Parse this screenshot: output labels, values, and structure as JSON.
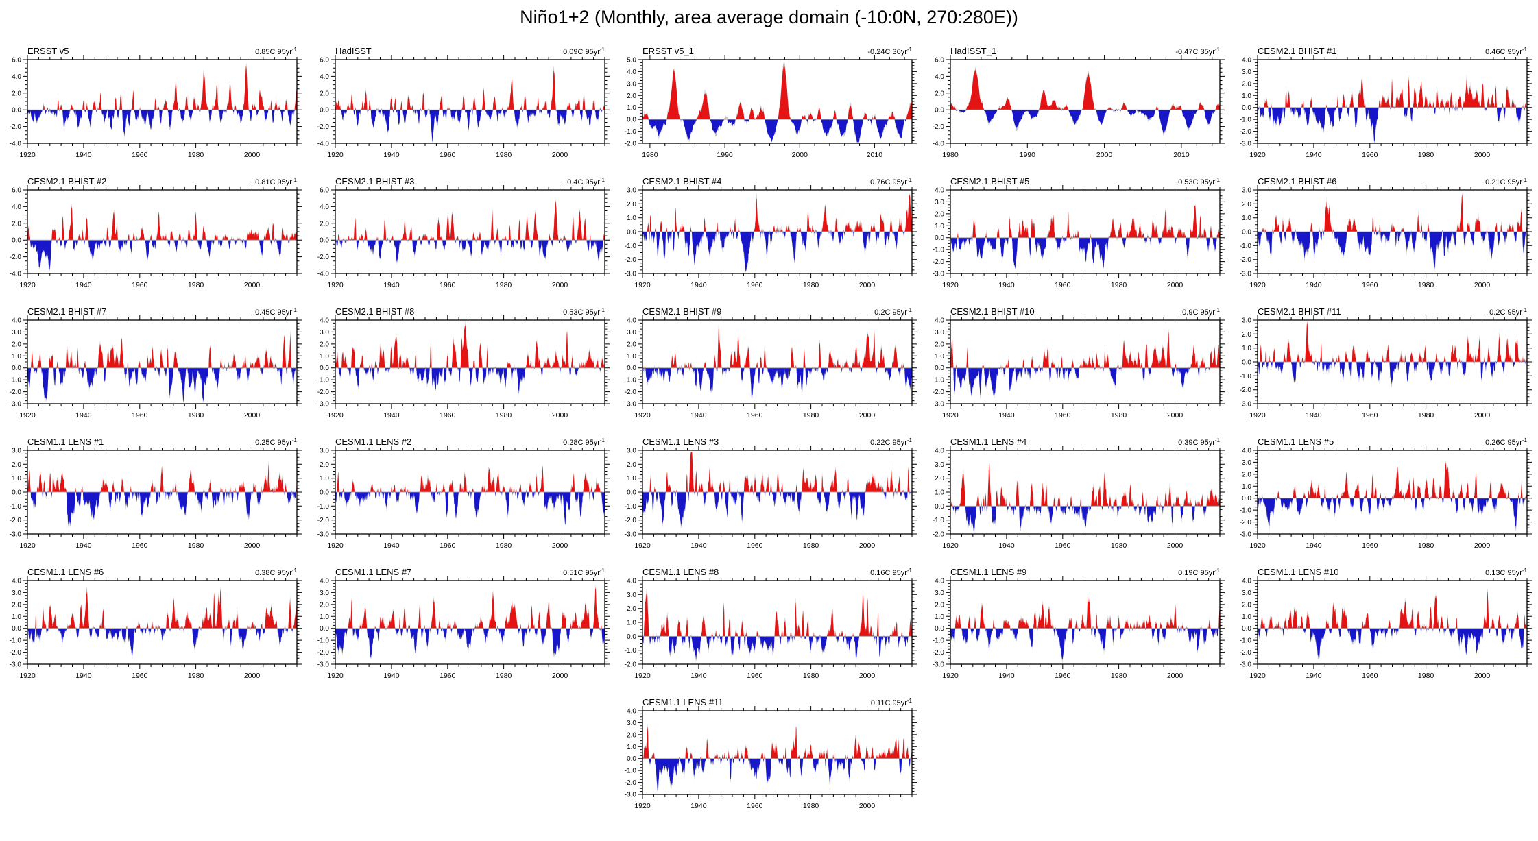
{
  "figure": {
    "title": "Niño1+2 (Monthly, area average domain (-10:0N, 270:280E))"
  },
  "colors": {
    "positive": "#e41414",
    "negative": "#1717c9",
    "raw": "#c3c3c3",
    "zero_line": "#a8a8a8",
    "axis": "#000000",
    "text": "#000000",
    "background": "#ffffff"
  },
  "chart_data": [
    {
      "type": "bar",
      "title": "ERSST v5",
      "trend": "0.85C 95yr^-1",
      "row": 1,
      "col": 1,
      "x_start": 1920,
      "x_end": 2016,
      "x_major": [
        1920,
        1940,
        1960,
        1980,
        2000
      ],
      "x_minor_step": 4,
      "ylim": [
        -4,
        6
      ],
      "y_step": 2,
      "y_minor": 0.5,
      "seed": 101,
      "amp": 1.3,
      "peaks": [
        [
          1925.9,
          1.3
        ],
        [
          1931,
          1.5
        ],
        [
          1939.9,
          1.4
        ],
        [
          1941.2,
          1.2
        ],
        [
          1943.5,
          0.9
        ],
        [
          1946,
          2.1
        ],
        [
          1951.4,
          2.0
        ],
        [
          1953.3,
          1.7
        ],
        [
          1957.7,
          2.3
        ],
        [
          1965.6,
          1.9
        ],
        [
          1969.4,
          1.5
        ],
        [
          1972.8,
          2.4
        ],
        [
          1976.7,
          1.9
        ],
        [
          1979.5,
          0.9
        ],
        [
          1982.9,
          3.9
        ],
        [
          1987.5,
          1.9
        ],
        [
          1992.2,
          2.2
        ],
        [
          1997.9,
          4.6
        ],
        [
          2002.7,
          1.1
        ],
        [
          2006.8,
          0.9
        ],
        [
          2008.5,
          1.2
        ],
        [
          2012.2,
          1.1
        ],
        [
          2015.7,
          1.4
        ],
        [
          1933,
          -1.6
        ],
        [
          1938,
          -1.7
        ],
        [
          1942.5,
          -1.4
        ],
        [
          1949.8,
          -1.4
        ],
        [
          1954.6,
          -2.5
        ],
        [
          1956.2,
          -1.6
        ],
        [
          1962,
          -1.4
        ],
        [
          1964,
          -1.3
        ],
        [
          1967.5,
          -1.6
        ],
        [
          1970.9,
          -1.8
        ],
        [
          1975.3,
          -1.8
        ],
        [
          1978,
          -1.2
        ],
        [
          1985.2,
          -1.4
        ],
        [
          1988.8,
          -1.5
        ],
        [
          1996.2,
          -1.2
        ],
        [
          1999.6,
          -1.5
        ],
        [
          2001.8,
          -1.2
        ],
        [
          2005,
          -1.1
        ],
        [
          2007.6,
          -1.6
        ],
        [
          2010.7,
          -1.4
        ],
        [
          2013.6,
          -1.2
        ]
      ]
    },
    {
      "type": "bar",
      "title": "HadISST",
      "trend": "0.09C 95yr^-1",
      "row": 1,
      "col": 2,
      "x_start": 1920,
      "x_end": 2016,
      "x_major": [
        1920,
        1940,
        1960,
        1980,
        2000
      ],
      "x_minor_step": 4,
      "ylim": [
        -4,
        6
      ],
      "y_step": 2,
      "y_minor": 0.5,
      "seed": 102,
      "amp": 1.3,
      "peaks": [
        [
          1925.9,
          1.5
        ],
        [
          1930.9,
          1.6
        ],
        [
          1932.3,
          1.1
        ],
        [
          1939.9,
          1.4
        ],
        [
          1941.3,
          1.5
        ],
        [
          1943.5,
          0.8
        ],
        [
          1946,
          1.2
        ],
        [
          1951.4,
          2.2
        ],
        [
          1953.3,
          1.2
        ],
        [
          1957.8,
          2.2
        ],
        [
          1965.6,
          1.8
        ],
        [
          1969.4,
          1.6
        ],
        [
          1972.8,
          2.8
        ],
        [
          1976.7,
          1.7
        ],
        [
          1982.9,
          3.7
        ],
        [
          1987.5,
          1.4
        ],
        [
          1992.2,
          1.9
        ],
        [
          1997.9,
          4.4
        ],
        [
          2002.7,
          1.0
        ],
        [
          2006.8,
          0.9
        ],
        [
          2008.5,
          1.1
        ],
        [
          2012.2,
          1.2
        ],
        [
          2015.7,
          0.8
        ],
        [
          1922.5,
          -1.3
        ],
        [
          1928,
          -1.2
        ],
        [
          1933.5,
          -1.3
        ],
        [
          1938.8,
          -2.2
        ],
        [
          1942.6,
          -1.3
        ],
        [
          1945,
          -1.1
        ],
        [
          1949.8,
          -1.4
        ],
        [
          1954.6,
          -2.2
        ],
        [
          1956.2,
          -1.5
        ],
        [
          1962,
          -1.3
        ],
        [
          1964.2,
          -1.4
        ],
        [
          1967.5,
          -1.5
        ],
        [
          1970.9,
          -1.6
        ],
        [
          1975.3,
          -1.6
        ],
        [
          1978,
          -1.1
        ],
        [
          1985.2,
          -1.5
        ],
        [
          1988.8,
          -1.7
        ],
        [
          1996.2,
          -1.1
        ],
        [
          1999.6,
          -1.4
        ],
        [
          2001.8,
          -1.1
        ],
        [
          2005,
          -1.0
        ],
        [
          2007.6,
          -1.5
        ],
        [
          2010.7,
          -1.6
        ],
        [
          2013.6,
          -1.3
        ]
      ]
    },
    {
      "type": "bar",
      "title": "ERSST v5_1",
      "trend": "-0.24C 36yr^-1",
      "row": 1,
      "col": 3,
      "x_start": 1979,
      "x_end": 2015,
      "x_major": [
        1980,
        1990,
        2000,
        2010
      ],
      "x_minor_step": 2,
      "ylim": [
        -2,
        5
      ],
      "y_step": 1,
      "y_minor": 0.25,
      "seed": 103,
      "amp": 0.9,
      "peaks": [
        [
          1979.6,
          0.5
        ],
        [
          1983.2,
          4.2
        ],
        [
          1987.4,
          1.5
        ],
        [
          1992.1,
          2.1
        ],
        [
          1993.6,
          1.2
        ],
        [
          1994.9,
          0.7
        ],
        [
          1997.9,
          4.2
        ],
        [
          2001.3,
          0.5
        ],
        [
          2002.6,
          0.9
        ],
        [
          2004.6,
          0.6
        ],
        [
          2006.8,
          1.1
        ],
        [
          2008.6,
          1.2
        ],
        [
          2010.1,
          0.7
        ],
        [
          2012.4,
          0.9
        ],
        [
          2014.9,
          1.3
        ],
        [
          1981.2,
          -1.2
        ],
        [
          1985.3,
          -1.5
        ],
        [
          1988.7,
          -1.7
        ],
        [
          1991,
          -0.9
        ],
        [
          1996.2,
          -1.7
        ],
        [
          1999.7,
          -1.2
        ],
        [
          2003.5,
          -0.9
        ],
        [
          2005.7,
          -1.0
        ],
        [
          2007.8,
          -1.6
        ],
        [
          2010.8,
          -1.5
        ],
        [
          2013.5,
          -1.7
        ]
      ]
    },
    {
      "type": "bar",
      "title": "HadISST_1",
      "trend": "-0.47C 35yr^-1",
      "row": 1,
      "col": 4,
      "x_start": 1980,
      "x_end": 2015,
      "x_major": [
        1980,
        1990,
        2000,
        2010
      ],
      "x_minor_step": 2,
      "ylim": [
        -4,
        6
      ],
      "y_step": 2,
      "y_minor": 0.5,
      "seed": 104,
      "amp": 0.9,
      "peaks": [
        [
          1983.3,
          4.5
        ],
        [
          1987.4,
          1.6
        ],
        [
          1992.1,
          1.8
        ],
        [
          1993.5,
          1.3
        ],
        [
          1995,
          0.6
        ],
        [
          1997.9,
          4.3
        ],
        [
          2002.6,
          0.6
        ],
        [
          2006.8,
          1.2
        ],
        [
          2009.8,
          0.5
        ],
        [
          2012.5,
          0.9
        ],
        [
          2014.9,
          1.1
        ],
        [
          1981.5,
          -0.9
        ],
        [
          1985.3,
          -1.3
        ],
        [
          1988.7,
          -2.0
        ],
        [
          1991,
          -0.8
        ],
        [
          1996.2,
          -1.0
        ],
        [
          1999.7,
          -1.3
        ],
        [
          2003.5,
          -0.7
        ],
        [
          2005.7,
          -0.9
        ],
        [
          2007.8,
          -1.9
        ],
        [
          2010.8,
          -1.5
        ],
        [
          2013.4,
          -1.4
        ]
      ]
    },
    {
      "type": "bar",
      "title": "CESM2.1 BHIST #1",
      "trend": "0.46C 95yr^-1",
      "row": 1,
      "col": 5,
      "x_start": 1920,
      "x_end": 2016,
      "x_major": [
        1920,
        1940,
        1960,
        1980,
        2000
      ],
      "x_minor_step": 4,
      "ylim": [
        -3,
        4
      ],
      "y_step": 1,
      "y_minor": 0.25,
      "seed": 105,
      "amp": 1.0,
      "peaks": []
    },
    {
      "type": "bar",
      "title": "CESM2.1 BHIST #2",
      "trend": "0.81C 95yr^-1",
      "row": 2,
      "col": 1,
      "x_start": 1920,
      "x_end": 2016,
      "x_major": [
        1920,
        1940,
        1960,
        1980,
        2000
      ],
      "x_minor_step": 4,
      "ylim": [
        -4,
        6
      ],
      "y_step": 2,
      "y_minor": 0.5,
      "seed": 106,
      "amp": 1.15,
      "peaks": []
    },
    {
      "type": "bar",
      "title": "CESM2.1 BHIST #3",
      "trend": "0.4C 95yr^-1",
      "row": 2,
      "col": 2,
      "x_start": 1920,
      "x_end": 2016,
      "x_major": [
        1920,
        1940,
        1960,
        1980,
        2000
      ],
      "x_minor_step": 4,
      "ylim": [
        -4,
        6
      ],
      "y_step": 2,
      "y_minor": 0.5,
      "seed": 107,
      "amp": 1.15,
      "peaks": []
    },
    {
      "type": "bar",
      "title": "CESM2.1 BHIST #4",
      "trend": "0.76C 95yr^-1",
      "row": 2,
      "col": 3,
      "x_start": 1920,
      "x_end": 2016,
      "x_major": [
        1920,
        1940,
        1960,
        1980,
        2000
      ],
      "x_minor_step": 4,
      "ylim": [
        -3,
        3
      ],
      "y_step": 1,
      "y_minor": 0.25,
      "seed": 108,
      "amp": 1.0,
      "peaks": []
    },
    {
      "type": "bar",
      "title": "CESM2.1 BHIST #5",
      "trend": "0.53C 95yr^-1",
      "row": 2,
      "col": 4,
      "x_start": 1920,
      "x_end": 2016,
      "x_major": [
        1920,
        1940,
        1960,
        1980,
        2000
      ],
      "x_minor_step": 4,
      "ylim": [
        -3,
        4
      ],
      "y_step": 1,
      "y_minor": 0.25,
      "seed": 109,
      "amp": 1.0,
      "peaks": []
    },
    {
      "type": "bar",
      "title": "CESM2.1 BHIST #6",
      "trend": "0.21C 95yr^-1",
      "row": 2,
      "col": 5,
      "x_start": 1920,
      "x_end": 2016,
      "x_major": [
        1920,
        1940,
        1960,
        1980,
        2000
      ],
      "x_minor_step": 4,
      "ylim": [
        -3,
        3
      ],
      "y_step": 1,
      "y_minor": 0.25,
      "seed": 110,
      "amp": 1.0,
      "peaks": []
    },
    {
      "type": "bar",
      "title": "CESM2.1 BHIST #7",
      "trend": "0.45C 95yr^-1",
      "row": 3,
      "col": 1,
      "x_start": 1920,
      "x_end": 2016,
      "x_major": [
        1920,
        1940,
        1960,
        1980,
        2000
      ],
      "x_minor_step": 4,
      "ylim": [
        -3,
        4
      ],
      "y_step": 1,
      "y_minor": 0.25,
      "seed": 111,
      "amp": 1.0,
      "peaks": []
    },
    {
      "type": "bar",
      "title": "CESM2.1 BHIST #8",
      "trend": "0.53C 95yr^-1",
      "row": 3,
      "col": 2,
      "x_start": 1920,
      "x_end": 2016,
      "x_major": [
        1920,
        1940,
        1960,
        1980,
        2000
      ],
      "x_minor_step": 4,
      "ylim": [
        -3,
        4
      ],
      "y_step": 1,
      "y_minor": 0.25,
      "seed": 112,
      "amp": 1.0,
      "peaks": []
    },
    {
      "type": "bar",
      "title": "CESM2.1 BHIST #9",
      "trend": "0.2C 95yr^-1",
      "row": 3,
      "col": 3,
      "x_start": 1920,
      "x_end": 2016,
      "x_major": [
        1920,
        1940,
        1960,
        1980,
        2000
      ],
      "x_minor_step": 4,
      "ylim": [
        -3,
        4
      ],
      "y_step": 1,
      "y_minor": 0.25,
      "seed": 113,
      "amp": 1.0,
      "peaks": []
    },
    {
      "type": "bar",
      "title": "CESM2.1 BHIST #10",
      "trend": "0.9C 95yr^-1",
      "row": 3,
      "col": 4,
      "x_start": 1920,
      "x_end": 2016,
      "x_major": [
        1920,
        1940,
        1960,
        1980,
        2000
      ],
      "x_minor_step": 4,
      "ylim": [
        -3,
        4
      ],
      "y_step": 1,
      "y_minor": 0.25,
      "seed": 114,
      "amp": 1.0,
      "peaks": []
    },
    {
      "type": "bar",
      "title": "CESM2.1 BHIST #11",
      "trend": "0.2C 95yr^-1",
      "row": 3,
      "col": 5,
      "x_start": 1920,
      "x_end": 2016,
      "x_major": [
        1920,
        1940,
        1960,
        1980,
        2000
      ],
      "x_minor_step": 4,
      "ylim": [
        -3,
        3
      ],
      "y_step": 1,
      "y_minor": 0.25,
      "seed": 115,
      "amp": 1.0,
      "peaks": []
    },
    {
      "type": "bar",
      "title": "CESM1.1 LENS #1",
      "trend": "0.25C 95yr^-1",
      "row": 4,
      "col": 1,
      "x_start": 1920,
      "x_end": 2016,
      "x_major": [
        1920,
        1940,
        1960,
        1980,
        2000
      ],
      "x_minor_step": 4,
      "ylim": [
        -3,
        3
      ],
      "y_step": 1,
      "y_minor": 0.25,
      "seed": 116,
      "amp": 1.0,
      "peaks": []
    },
    {
      "type": "bar",
      "title": "CESM1.1 LENS #2",
      "trend": "0.28C 95yr^-1",
      "row": 4,
      "col": 2,
      "x_start": 1920,
      "x_end": 2016,
      "x_major": [
        1920,
        1940,
        1960,
        1980,
        2000
      ],
      "x_minor_step": 4,
      "ylim": [
        -3,
        3
      ],
      "y_step": 1,
      "y_minor": 0.25,
      "seed": 117,
      "amp": 1.0,
      "peaks": []
    },
    {
      "type": "bar",
      "title": "CESM1.1 LENS #3",
      "trend": "0.22C 95yr^-1",
      "row": 4,
      "col": 3,
      "x_start": 1920,
      "x_end": 2016,
      "x_major": [
        1920,
        1940,
        1960,
        1980,
        2000
      ],
      "x_minor_step": 4,
      "ylim": [
        -3,
        3
      ],
      "y_step": 1,
      "y_minor": 0.25,
      "seed": 118,
      "amp": 1.0,
      "peaks": []
    },
    {
      "type": "bar",
      "title": "CESM1.1 LENS #4",
      "trend": "0.39C 95yr^-1",
      "row": 4,
      "col": 4,
      "x_start": 1920,
      "x_end": 2016,
      "x_major": [
        1920,
        1940,
        1960,
        1980,
        2000
      ],
      "x_minor_step": 4,
      "ylim": [
        -2,
        4
      ],
      "y_step": 1,
      "y_minor": 0.25,
      "seed": 119,
      "amp": 1.0,
      "peaks": []
    },
    {
      "type": "bar",
      "title": "CESM1.1 LENS #5",
      "trend": "0.26C 95yr^-1",
      "row": 4,
      "col": 5,
      "x_start": 1920,
      "x_end": 2016,
      "x_major": [
        1920,
        1940,
        1960,
        1980,
        2000
      ],
      "x_minor_step": 4,
      "ylim": [
        -3,
        4
      ],
      "y_step": 1,
      "y_minor": 0.25,
      "seed": 120,
      "amp": 1.0,
      "peaks": []
    },
    {
      "type": "bar",
      "title": "CESM1.1 LENS #6",
      "trend": "0.38C 95yr^-1",
      "row": 5,
      "col": 1,
      "x_start": 1920,
      "x_end": 2016,
      "x_major": [
        1920,
        1940,
        1960,
        1980,
        2000
      ],
      "x_minor_step": 4,
      "ylim": [
        -3,
        4
      ],
      "y_step": 1,
      "y_minor": 0.25,
      "seed": 121,
      "amp": 1.0,
      "peaks": []
    },
    {
      "type": "bar",
      "title": "CESM1.1 LENS #7",
      "trend": "0.51C 95yr^-1",
      "row": 5,
      "col": 2,
      "x_start": 1920,
      "x_end": 2016,
      "x_major": [
        1920,
        1940,
        1960,
        1980,
        2000
      ],
      "x_minor_step": 4,
      "ylim": [
        -3,
        4
      ],
      "y_step": 1,
      "y_minor": 0.25,
      "seed": 122,
      "amp": 1.0,
      "peaks": []
    },
    {
      "type": "bar",
      "title": "CESM1.1 LENS #8",
      "trend": "0.16C 95yr^-1",
      "row": 5,
      "col": 3,
      "x_start": 1920,
      "x_end": 2016,
      "x_major": [
        1920,
        1940,
        1960,
        1980,
        2000
      ],
      "x_minor_step": 4,
      "ylim": [
        -2,
        4
      ],
      "y_step": 1,
      "y_minor": 0.25,
      "seed": 123,
      "amp": 1.0,
      "peaks": []
    },
    {
      "type": "bar",
      "title": "CESM1.1 LENS #9",
      "trend": "0.19C 95yr^-1",
      "row": 5,
      "col": 4,
      "x_start": 1920,
      "x_end": 2016,
      "x_major": [
        1920,
        1940,
        1960,
        1980,
        2000
      ],
      "x_minor_step": 4,
      "ylim": [
        -3,
        4
      ],
      "y_step": 1,
      "y_minor": 0.25,
      "seed": 124,
      "amp": 1.0,
      "peaks": []
    },
    {
      "type": "bar",
      "title": "CESM1.1 LENS #10",
      "trend": "0.13C 95yr^-1",
      "row": 5,
      "col": 5,
      "x_start": 1920,
      "x_end": 2016,
      "x_major": [
        1920,
        1940,
        1960,
        1980,
        2000
      ],
      "x_minor_step": 4,
      "ylim": [
        -3,
        4
      ],
      "y_step": 1,
      "y_minor": 0.25,
      "seed": 125,
      "amp": 1.0,
      "peaks": []
    },
    {
      "type": "bar",
      "title": "CESM1.1 LENS #11",
      "trend": "0.11C 95yr^-1",
      "row": 6,
      "col": 3,
      "x_start": 1920,
      "x_end": 2016,
      "x_major": [
        1920,
        1940,
        1960,
        1980,
        2000
      ],
      "x_minor_step": 4,
      "ylim": [
        -3,
        4
      ],
      "y_step": 1,
      "y_minor": 0.25,
      "seed": 126,
      "amp": 1.0,
      "peaks": []
    }
  ]
}
